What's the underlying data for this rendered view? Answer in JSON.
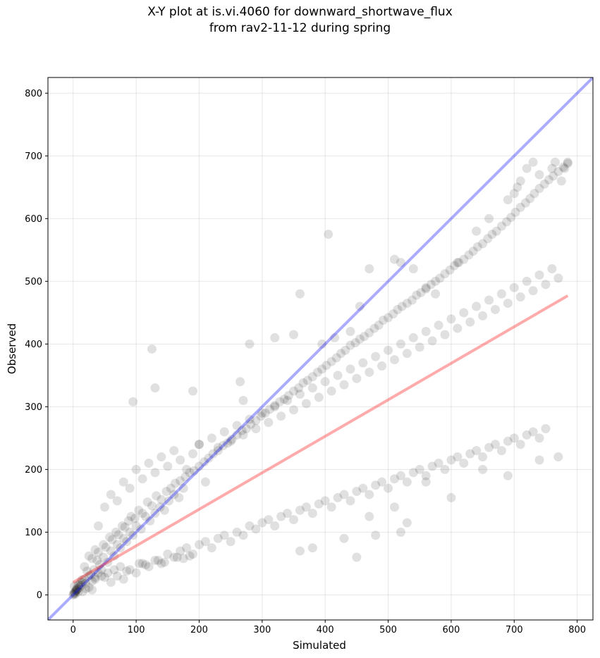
{
  "chart_data": {
    "type": "scatter",
    "title_lines": [
      "X-Y plot at is.vi.4060 for downward_shortwave_flux",
      "from rav2-11-12 during spring"
    ],
    "xlabel": "Simulated",
    "ylabel": "Observed",
    "xlim": [
      -40,
      825
    ],
    "ylim": [
      -40,
      825
    ],
    "xticks": [
      0,
      100,
      200,
      300,
      400,
      500,
      600,
      700,
      800
    ],
    "yticks": [
      0,
      100,
      200,
      300,
      400,
      500,
      600,
      700,
      800
    ],
    "grid": true,
    "one_to_one_line": {
      "color": "#0000ff",
      "x": [
        -40,
        825
      ],
      "y": [
        -40,
        825
      ]
    },
    "fit_line": {
      "color": "#ff0000",
      "x": [
        0,
        785
      ],
      "y": [
        20,
        477
      ]
    },
    "point_color": "#000000",
    "points": {
      "x": [
        0,
        1,
        2,
        3,
        4,
        5,
        6,
        8,
        10,
        12,
        15,
        18,
        20,
        25,
        30,
        35,
        40,
        45,
        3,
        7,
        2,
        5,
        9,
        14,
        22,
        28,
        33,
        38,
        42,
        48,
        55,
        60,
        65,
        70,
        75,
        80,
        85,
        90,
        95,
        100,
        108,
        115,
        122,
        130,
        138,
        145,
        152,
        160,
        168,
        175,
        18,
        25,
        30,
        35,
        40,
        48,
        52,
        58,
        62,
        68,
        72,
        78,
        82,
        88,
        92,
        98,
        104,
        110,
        118,
        125,
        132,
        140,
        148,
        155,
        162,
        170,
        178,
        185,
        192,
        200,
        208,
        215,
        222,
        230,
        238,
        245,
        252,
        260,
        268,
        275,
        282,
        290,
        298,
        305,
        312,
        320,
        328,
        335,
        342,
        350,
        358,
        365,
        372,
        380,
        388,
        395,
        402,
        410,
        418,
        425,
        432,
        440,
        448,
        455,
        462,
        470,
        478,
        485,
        492,
        500,
        508,
        515,
        522,
        530,
        538,
        545,
        552,
        560,
        568,
        575,
        582,
        590,
        598,
        605,
        612,
        620,
        628,
        635,
        642,
        650,
        658,
        665,
        672,
        680,
        688,
        695,
        702,
        710,
        718,
        725,
        732,
        740,
        748,
        755,
        762,
        770,
        778,
        785,
        60,
        70,
        80,
        90,
        100,
        110,
        120,
        130,
        140,
        150,
        160,
        170,
        180,
        190,
        200,
        210,
        220,
        230,
        240,
        250,
        260,
        270,
        280,
        290,
        300,
        310,
        320,
        330,
        340,
        350,
        360,
        370,
        380,
        390,
        400,
        410,
        420,
        430,
        440,
        450,
        460,
        470,
        480,
        490,
        500,
        510,
        520,
        530,
        540,
        550,
        560,
        570,
        580,
        590,
        600,
        610,
        620,
        630,
        640,
        650,
        660,
        670,
        680,
        690,
        700,
        710,
        720,
        730,
        740,
        750,
        40,
        50,
        60,
        70,
        80,
        90,
        100,
        110,
        120,
        130,
        140,
        150,
        160,
        170,
        180,
        190,
        200,
        210,
        220,
        230,
        240,
        250,
        260,
        270,
        280,
        290,
        300,
        310,
        320,
        330,
        340,
        350,
        360,
        370,
        380,
        390,
        400,
        410,
        420,
        430,
        440,
        450,
        460,
        470,
        480,
        490,
        500,
        510,
        520,
        530,
        540,
        550,
        560,
        570,
        580,
        590,
        600,
        610,
        620,
        630,
        640,
        650,
        660,
        670,
        680,
        690,
        700,
        710,
        720,
        730,
        740,
        750,
        760,
        770,
        95,
        125,
        130,
        190,
        200,
        265,
        270,
        280,
        320,
        350,
        360,
        395,
        405,
        415,
        440,
        455,
        470,
        510,
        520,
        540,
        560,
        575,
        610,
        640,
        660,
        690,
        700,
        705,
        710,
        720,
        730,
        740,
        760,
        765,
        775,
        780,
        785,
        450,
        380,
        360,
        430,
        480,
        520,
        600,
        650,
        690,
        740,
        770,
        560,
        470,
        510,
        530,
        15,
        20,
        25,
        30,
        12,
        8,
        35,
        45,
        50,
        55,
        65,
        75,
        85,
        105,
        115,
        135,
        145,
        165,
        175,
        185
      ],
      "y": [
        0,
        2,
        4,
        3,
        6,
        8,
        10,
        5,
        12,
        15,
        20,
        25,
        18,
        30,
        22,
        28,
        35,
        40,
        1,
        9,
        14,
        7,
        16,
        24,
        38,
        32,
        40,
        55,
        48,
        60,
        52,
        70,
        62,
        80,
        75,
        90,
        85,
        100,
        95,
        110,
        105,
        125,
        118,
        130,
        140,
        135,
        150,
        160,
        155,
        170,
        45,
        62,
        58,
        72,
        68,
        80,
        76,
        92,
        88,
        100,
        96,
        110,
        108,
        118,
        125,
        122,
        135,
        130,
        148,
        142,
        158,
        152,
        165,
        170,
        178,
        182,
        188,
        195,
        198,
        205,
        212,
        218,
        225,
        230,
        238,
        242,
        248,
        255,
        262,
        265,
        272,
        278,
        285,
        290,
        296,
        302,
        308,
        312,
        318,
        325,
        330,
        338,
        342,
        348,
        355,
        360,
        366,
        372,
        378,
        385,
        390,
        398,
        402,
        408,
        412,
        418,
        425,
        430,
        438,
        442,
        448,
        455,
        460,
        465,
        470,
        478,
        482,
        488,
        495,
        500,
        505,
        512,
        518,
        525,
        530,
        535,
        542,
        548,
        555,
        560,
        568,
        575,
        580,
        588,
        595,
        602,
        610,
        618,
        625,
        632,
        640,
        648,
        655,
        662,
        668,
        675,
        682,
        688,
        20,
        30,
        25,
        40,
        35,
        50,
        45,
        55,
        50,
        65,
        60,
        70,
        75,
        65,
        80,
        85,
        75,
        90,
        95,
        85,
        100,
        95,
        110,
        105,
        115,
        120,
        110,
        125,
        130,
        120,
        135,
        140,
        130,
        145,
        150,
        140,
        155,
        160,
        150,
        165,
        170,
        160,
        175,
        180,
        170,
        185,
        190,
        180,
        195,
        200,
        190,
        205,
        210,
        200,
        215,
        220,
        210,
        225,
        230,
        220,
        235,
        240,
        230,
        245,
        250,
        240,
        255,
        260,
        250,
        265,
        110,
        140,
        160,
        150,
        180,
        170,
        200,
        185,
        210,
        195,
        220,
        205,
        230,
        215,
        200,
        225,
        240,
        180,
        250,
        235,
        260,
        245,
        270,
        255,
        280,
        265,
        290,
        275,
        300,
        285,
        310,
        295,
        320,
        305,
        330,
        315,
        340,
        325,
        350,
        335,
        360,
        345,
        370,
        355,
        380,
        365,
        390,
        375,
        400,
        385,
        410,
        395,
        420,
        405,
        430,
        415,
        440,
        425,
        450,
        435,
        460,
        445,
        470,
        455,
        480,
        465,
        490,
        475,
        500,
        485,
        510,
        495,
        520,
        505,
        308,
        392,
        330,
        325,
        240,
        340,
        310,
        400,
        410,
        415,
        480,
        400,
        575,
        410,
        420,
        460,
        520,
        535,
        530,
        520,
        490,
        480,
        530,
        580,
        600,
        630,
        640,
        650,
        660,
        680,
        690,
        670,
        680,
        690,
        660,
        680,
        690,
        60,
        75,
        70,
        90,
        95,
        100,
        155,
        200,
        190,
        215,
        220,
        180,
        125,
        140,
        115,
        5,
        10,
        12,
        8,
        20,
        15,
        25,
        30,
        28,
        35,
        40,
        45,
        38,
        50,
        48,
        55,
        52,
        60,
        58,
        62
      ]
    }
  }
}
